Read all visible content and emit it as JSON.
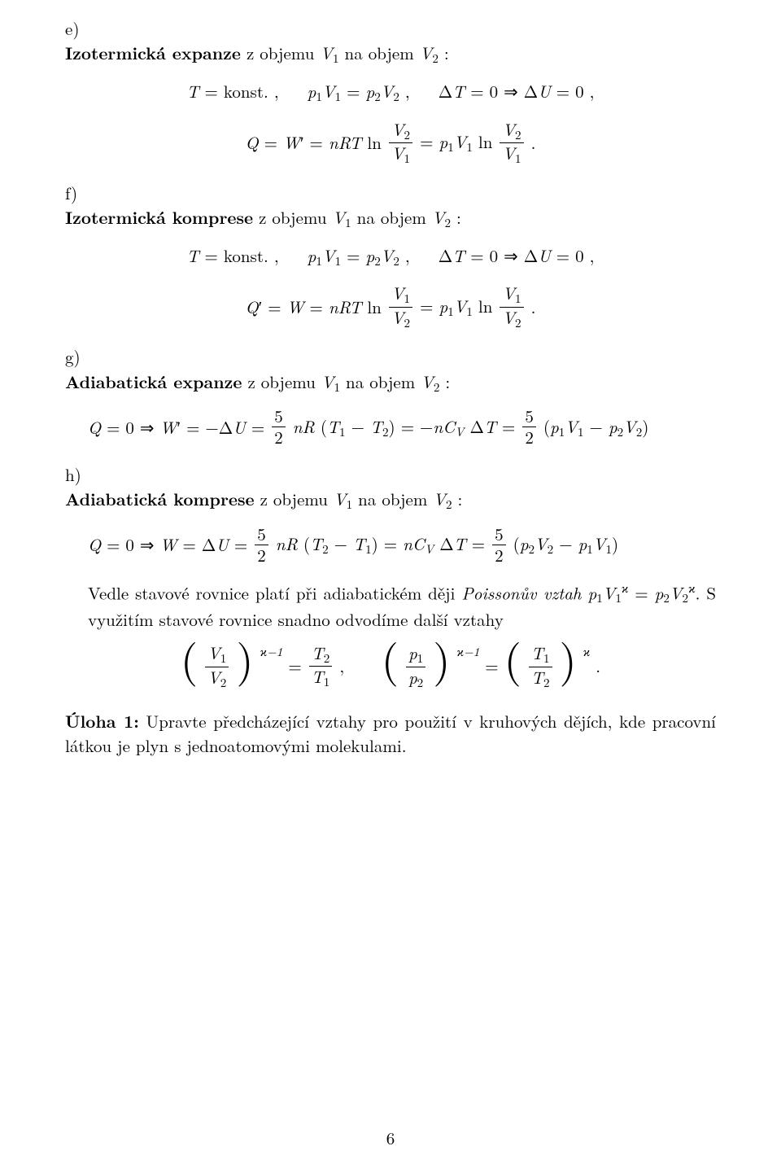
{
  "items": {
    "e": {
      "label": "e)",
      "title": "Izotermická expanze",
      "title_tail": " z objemu V₁ na objem V₂ :"
    },
    "f": {
      "label": "f)",
      "title": "Izotermická komprese",
      "title_tail": " z objemu V₁ na objem V₂ :"
    },
    "g": {
      "label": "g)",
      "title": "Adiabatická expanze",
      "title_tail": " z objemu V₁ na objem V₂ :"
    },
    "h": {
      "label": "h)",
      "title": "Adiabatická komprese",
      "title_tail": " z objemu V₁ na objem V₂ :"
    }
  },
  "eq": {
    "e_top": "T = konst. ,    p₁V₁ = p₂V₂ ,    ΔT = 0 ⇒ ΔU = 0 ,",
    "e_bot_pre": "Q = W′ = nRT ln ",
    "e_bot_mid": " = p₁V₁ ln ",
    "e_bot_end": " .",
    "f_top": "T = konst. ,    p₁V₁ = p₂V₂ ,    ΔT = 0 ⇒ ΔU = 0 ,",
    "f_bot_pre": "Q′ = W = nRT ln ",
    "f_bot_mid": " = p₁V₁ ln ",
    "f_bot_end": " .",
    "g_pre": "Q = 0 ⇒ W′ = −ΔU =  ",
    "g_mid1": "nR (T₁ − T₂) = −nC",
    "g_mid_cv": "V",
    "g_mid2": "ΔT =  ",
    "g_end": " (p₁V₁ − p₂V₂)",
    "h_pre": "Q = 0 ⇒ W = ΔU =  ",
    "h_mid1": "nR (T₂ − T₁) = nC",
    "h_mid2": "ΔT =  ",
    "h_end": " (p₂V₂ − p₁V₁)",
    "frac_5_2_num": "5",
    "frac_5_2_den": "2",
    "V2": "V₂",
    "V1": "V₁",
    "T2": "T₂",
    "T1": "T₁",
    "p1": "p₁",
    "p2": "p₂",
    "rel_eq": " = ",
    "rel_comma": " ,     ",
    "rel_dot": " .",
    "kappa_m1": "ϰ−1",
    "kappa": "ϰ"
  },
  "para1": "Vedle stavové rovnice platí při adiabatickém ději ",
  "para1_it": "Poissonův vztah",
  "para1b": " p₁V₁",
  "para1_sup": "ϰ",
  "para1c": " = p₂V₂",
  "para1d": ". S využitím stavové rovnice snadno odvodíme další vztahy",
  "task_label": "Úloha 1:",
  "task_body": " Upravte předcházející vztahy pro použití v kruhových dějích, kde pracovní látkou je plyn s jednoatomovými molekulami.",
  "page_number": "6"
}
